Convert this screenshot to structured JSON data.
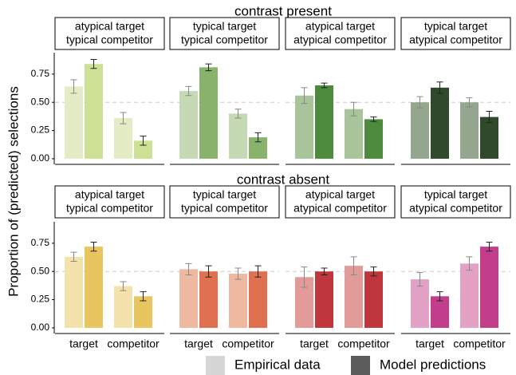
{
  "chart_data": {
    "type": "bar",
    "y_label": "Proportion of (predicted) selections",
    "categories": [
      "target",
      "competitor"
    ],
    "ylim": [
      -0.05,
      0.94
    ],
    "yticks": [
      {
        "value": 0,
        "label": "0.00"
      },
      {
        "value": 0.25,
        "label": "0.25"
      },
      {
        "value": 0.5,
        "label": "0.50"
      },
      {
        "value": 0.75,
        "label": "0.75"
      }
    ],
    "reference_line": 0.5,
    "legend": [
      {
        "name": "Empirical data",
        "color": "#d6d6d6"
      },
      {
        "name": "Model predictions",
        "color": "#5c5c5c"
      }
    ],
    "rows": [
      {
        "title": "contrast present",
        "panels": [
          {
            "title": [
              "atypical target",
              "typical competitor"
            ],
            "series": [
              {
                "color": "#e4ecc6",
                "values": [
                  0.64,
                  0.36
                ],
                "errors": [
                  0.06,
                  0.05
                ]
              },
              {
                "color": "#cde095",
                "values": [
                  0.84,
                  0.16
                ],
                "errors": [
                  0.04,
                  0.04
                ]
              }
            ]
          },
          {
            "title": [
              "typical target",
              "typical competitor"
            ],
            "series": [
              {
                "color": "#c5d9b5",
                "values": [
                  0.6,
                  0.4
                ],
                "errors": [
                  0.04,
                  0.04
                ]
              },
              {
                "color": "#89b36b",
                "values": [
                  0.81,
                  0.19
                ],
                "errors": [
                  0.03,
                  0.04
                ]
              }
            ]
          },
          {
            "title": [
              "atypical target",
              "atypical competitor"
            ],
            "series": [
              {
                "color": "#a8c49b",
                "values": [
                  0.56,
                  0.44
                ],
                "errors": [
                  0.07,
                  0.06
                ]
              },
              {
                "color": "#4e8a3d",
                "values": [
                  0.65,
                  0.35
                ],
                "errors": [
                  0.02,
                  0.02
                ]
              }
            ]
          },
          {
            "title": [
              "typical target",
              "atypical competitor"
            ],
            "series": [
              {
                "color": "#94a68d",
                "values": [
                  0.5,
                  0.5
                ],
                "errors": [
                  0.05,
                  0.04
                ]
              },
              {
                "color": "#2e4a2b",
                "values": [
                  0.63,
                  0.37
                ],
                "errors": [
                  0.05,
                  0.05
                ]
              }
            ]
          }
        ]
      },
      {
        "title": "contrast absent",
        "panels": [
          {
            "title": [
              "atypical target",
              "typical competitor"
            ],
            "series": [
              {
                "color": "#f3e2ab",
                "values": [
                  0.63,
                  0.37
                ],
                "errors": [
                  0.04,
                  0.04
                ]
              },
              {
                "color": "#e8c55f",
                "values": [
                  0.72,
                  0.28
                ],
                "errors": [
                  0.04,
                  0.04
                ]
              }
            ]
          },
          {
            "title": [
              "typical target",
              "typical competitor"
            ],
            "series": [
              {
                "color": "#efb9a1",
                "values": [
                  0.52,
                  0.48
                ],
                "errors": [
                  0.05,
                  0.05
                ]
              },
              {
                "color": "#e07150",
                "values": [
                  0.5,
                  0.5
                ],
                "errors": [
                  0.05,
                  0.05
                ]
              }
            ]
          },
          {
            "title": [
              "atypical target",
              "atypical competitor"
            ],
            "series": [
              {
                "color": "#e39b99",
                "values": [
                  0.45,
                  0.55
                ],
                "errors": [
                  0.09,
                  0.08
                ]
              },
              {
                "color": "#c0363d",
                "values": [
                  0.5,
                  0.5
                ],
                "errors": [
                  0.03,
                  0.04
                ]
              }
            ]
          },
          {
            "title": [
              "typical target",
              "atypical competitor"
            ],
            "series": [
              {
                "color": "#e2a1c5",
                "values": [
                  0.43,
                  0.57
                ],
                "errors": [
                  0.06,
                  0.06
                ]
              },
              {
                "color": "#c33e8a",
                "values": [
                  0.28,
                  0.72
                ],
                "errors": [
                  0.04,
                  0.04
                ]
              }
            ]
          }
        ]
      }
    ]
  }
}
